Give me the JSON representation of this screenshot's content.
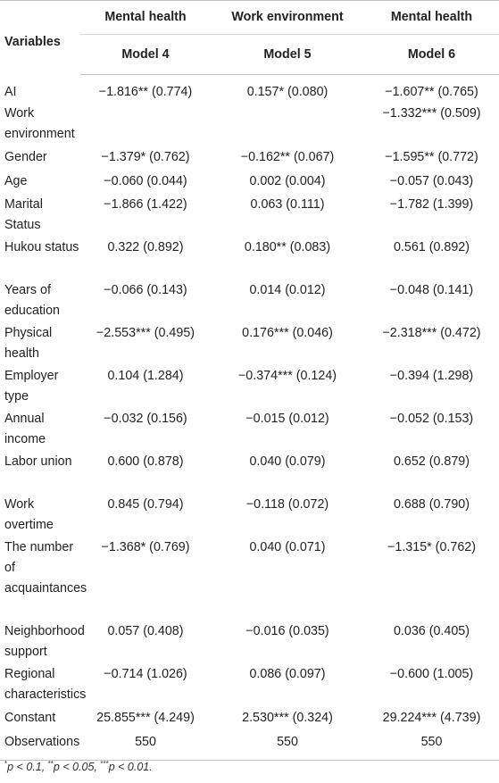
{
  "header": {
    "variables": "Variables",
    "groups": [
      "Mental health",
      "Work environment",
      "Mental health"
    ],
    "models": [
      "Model 4",
      "Model 5",
      "Model 6"
    ]
  },
  "rows": [
    {
      "label": "AI",
      "m4": "−1.816** (0.774)",
      "m5": "0.157* (0.080)",
      "m6": "−1.607** (0.765)"
    },
    {
      "label": "Work environment",
      "m4": "",
      "m5": "",
      "m6": "−1.332*** (0.509)"
    },
    {
      "label": "Gender",
      "m4": "−1.379* (0.762)",
      "m5": "−0.162** (0.067)",
      "m6": "−1.595** (0.772)"
    },
    {
      "label": "Age",
      "m4": "−0.060 (0.044)",
      "m5": "0.002 (0.004)",
      "m6": "−0.057 (0.043)"
    },
    {
      "label": "Marital Status",
      "m4": "−1.866 (1.422)",
      "m5": "0.063 (0.111)",
      "m6": "−1.782 (1.399)"
    },
    {
      "label": "Hukou status",
      "m4": "0.322 (0.892)",
      "m5": "0.180** (0.083)",
      "m6": "0.561 (0.892)"
    },
    {
      "label": "Years of education",
      "m4": "−0.066 (0.143)",
      "m5": "0.014 (0.012)",
      "m6": "−0.048 (0.141)"
    },
    {
      "label": "Physical health",
      "m4": "−2.553*** (0.495)",
      "m5": "0.176*** (0.046)",
      "m6": "−2.318*** (0.472)"
    },
    {
      "label": "Employer type",
      "m4": "0.104 (1.284)",
      "m5": "−0.374*** (0.124)",
      "m6": "−0.394 (1.298)"
    },
    {
      "label": "Annual income",
      "m4": "−0.032 (0.156)",
      "m5": "−0.015 (0.012)",
      "m6": "−0.052 (0.153)"
    },
    {
      "label": "Labor union",
      "m4": "0.600 (0.878)",
      "m5": "0.040 (0.079)",
      "m6": "0.652 (0.879)"
    },
    {
      "label": "Work overtime",
      "m4": "0.845 (0.794)",
      "m5": "−0.118 (0.072)",
      "m6": "0.688 (0.790)"
    },
    {
      "label": "The number of acquaintances",
      "m4": "−1.368* (0.769)",
      "m5": "0.040 (0.071)",
      "m6": "−1.315* (0.762)"
    },
    {
      "label": "Neighborhood support",
      "m4": "0.057 (0.408)",
      "m5": "−0.016 (0.035)",
      "m6": "0.036 (0.405)"
    },
    {
      "label": "Regional characteristics",
      "m4": "−0.714 (1.026)",
      "m5": "0.086 (0.097)",
      "m6": "−0.600 (1.005)"
    },
    {
      "label": "Constant",
      "m4": "25.855*** (4.249)",
      "m5": "2.530*** (0.324)",
      "m6": "29.224*** (4.739)"
    },
    {
      "label": "Observations",
      "m4": "550",
      "m5": "550",
      "m6": "550"
    }
  ],
  "notes": {
    "p1_mark": "*",
    "p1_text": "p < 0.1, ",
    "p2_mark": "**",
    "p2_text": "p < 0.05, ",
    "p3_mark": "***",
    "p3_text": "p < 0.01."
  }
}
